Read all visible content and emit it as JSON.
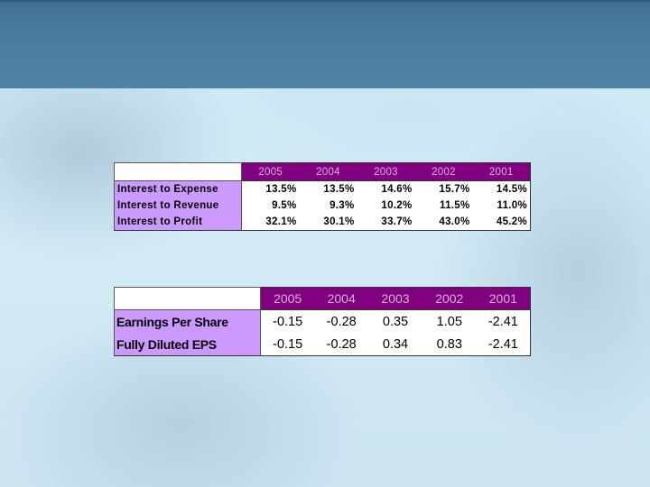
{
  "ratios_table": {
    "years": [
      "2005",
      "2004",
      "2003",
      "2002",
      "2001"
    ],
    "rows": [
      {
        "label": "Interest to Expense",
        "values": [
          "13.5%",
          "13.5%",
          "14.6%",
          "15.7%",
          "14.5%"
        ]
      },
      {
        "label": "Interest to Revenue",
        "values": [
          "9.5%",
          "9.3%",
          "10.2%",
          "11.5%",
          "11.0%"
        ]
      },
      {
        "label": "Interest to Profit",
        "values": [
          "32.1%",
          "30.1%",
          "33.7%",
          "43.0%",
          "45.2%"
        ]
      }
    ]
  },
  "eps_table": {
    "years": [
      "2005",
      "2004",
      "2003",
      "2002",
      "2001"
    ],
    "rows": [
      {
        "label": "Earnings Per Share",
        "values": [
          "-0.15",
          "-0.28",
          "0.35",
          "1.05",
          "-2.41"
        ]
      },
      {
        "label": "Fully Diluted EPS",
        "values": [
          "-0.15",
          "-0.28",
          "0.34",
          "0.83",
          "-2.41"
        ]
      }
    ]
  },
  "colors": {
    "header_band": "#4a7ca1",
    "year_header_bg": "#800080",
    "year_header_text": "#d9b0d9",
    "row_label_bg": "#cc99ff"
  }
}
